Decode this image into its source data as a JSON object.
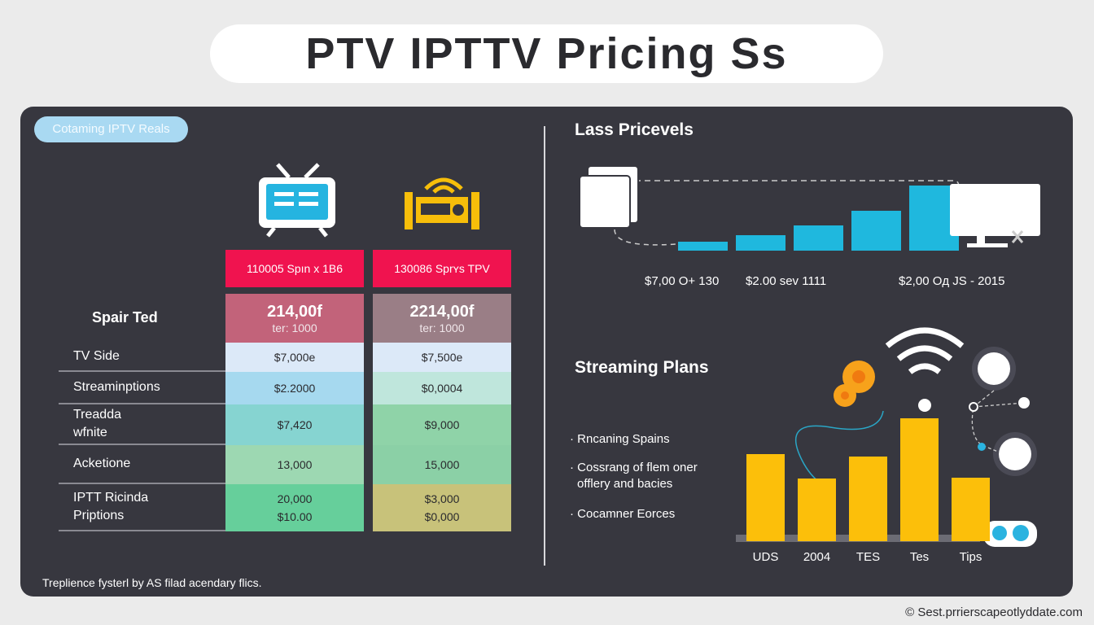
{
  "title": "PTV IPTTV Pricing Ss",
  "badge": "Cotaming IPTV Reals",
  "table": {
    "section_label": "Spair Ted",
    "columns": [
      {
        "header": "110005 Spın x 1B6",
        "price": "214,00f",
        "price_sub": "ter: 1000",
        "cells": [
          [
            "$7,000e"
          ],
          [
            "$2.2000"
          ],
          [
            "$7,420"
          ],
          [
            "13,000"
          ],
          [
            "20,000",
            "$10.00"
          ]
        ]
      },
      {
        "header": "130086 Sprʏs TPV",
        "price": "2214,00f",
        "price_sub": "ter: 1000",
        "cells": [
          [
            "$7,500e"
          ],
          [
            "$0,0004"
          ],
          [
            "$9,000"
          ],
          [
            "15,000"
          ],
          [
            "$3,000",
            "$0,000"
          ]
        ]
      }
    ],
    "rows": [
      [
        "TV Side"
      ],
      [
        "Streaminptions"
      ],
      [
        "Treadda",
        "wfnite"
      ],
      [
        "Acketione"
      ],
      [
        "IPTT Ricinda",
        "Priptions"
      ]
    ]
  },
  "price_levels": {
    "heading": "Lass Pricevels",
    "bar_values": [
      1,
      1.7,
      2.8,
      4.5,
      7.3
    ],
    "bar_color": "#1fb8de",
    "labels": [
      "$7,00 O+ 130",
      "$2.00 seᴠ 1111",
      "$2,00 Oд JS - 2015"
    ]
  },
  "streaming": {
    "heading": "Streaming Plans",
    "bullets": [
      "Rncaning Spains",
      "Cossrang of flem oner offlery and bacies",
      "Cocamner Eorces"
    ],
    "categories": [
      "UDS",
      "2004",
      "TES",
      "Tes",
      "Tips"
    ],
    "bar_values": [
      107,
      77,
      104,
      151,
      78
    ],
    "bar_color": "#fcbf0a"
  },
  "footer": "Treplience fysterl by AS filad acendary flics.",
  "copyright": "© Sest.prrierscapeotlyddate.com"
}
